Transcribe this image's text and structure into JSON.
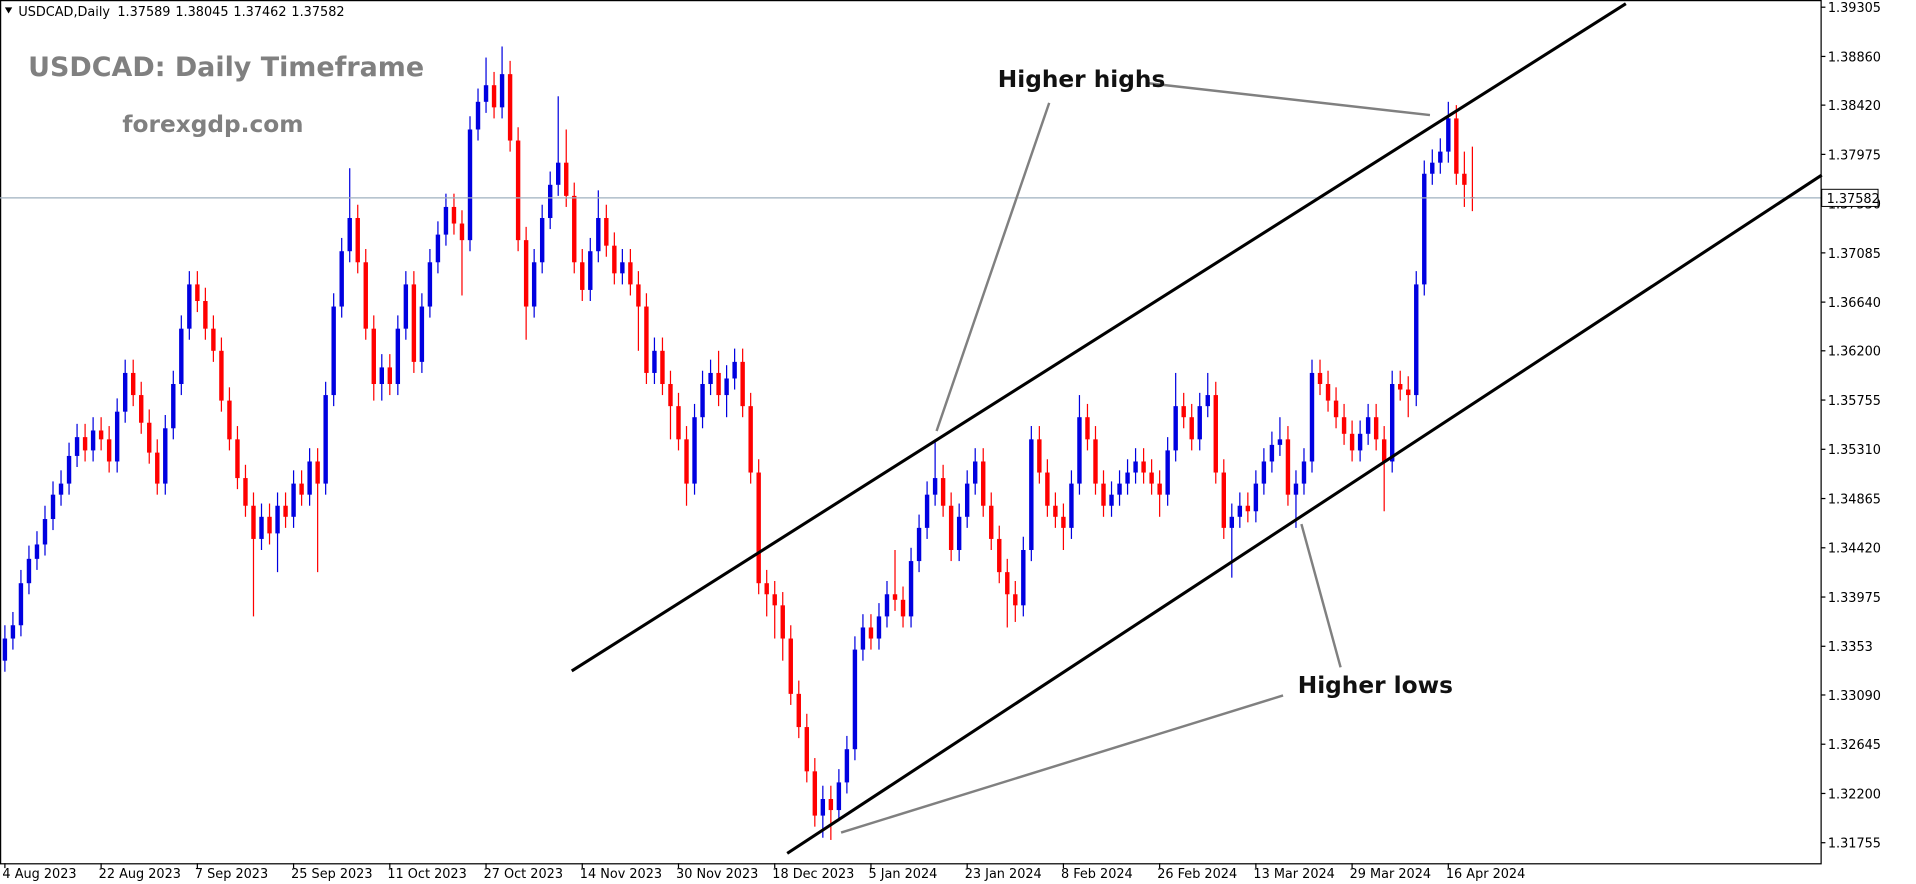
{
  "chart_data": {
    "type": "candlestick",
    "symbol": "USDCAD,Daily",
    "title": "USDCAD: Daily Timeframe",
    "subtitle": "forexgdp.com",
    "annotations": [
      "Higher highs",
      "Higher lows"
    ],
    "up_color": "#0000e0",
    "down_color": "#ff0000",
    "ylim": [
      1.3157,
      1.3937
    ],
    "yticks": [
      1.39305,
      {
        "value": 1.3886,
        "label": "1.38860"
      },
      {
        "value": 1.3842,
        "label": "1.38420"
      },
      1.37975,
      {
        "value": 1.3753,
        "label": "1.37530"
      },
      1.37085,
      {
        "value": 1.3664,
        "label": "1.36640"
      },
      {
        "value": 1.362,
        "label": "1.36200"
      },
      1.35755,
      {
        "value": 1.3531,
        "label": "1.35310"
      },
      1.34865,
      {
        "value": 1.3442,
        "label": "1.34420"
      },
      1.33975,
      1.3353,
      {
        "value": 1.3309,
        "label": "1.33090"
      },
      1.32645,
      {
        "value": 1.322,
        "label": "1.32200"
      },
      1.31755
    ],
    "categories": [
      "4 Aug 2023",
      null,
      null,
      null,
      null,
      null,
      null,
      null,
      null,
      null,
      null,
      null,
      "22 Aug 2023",
      null,
      null,
      null,
      null,
      null,
      null,
      null,
      null,
      null,
      null,
      null,
      "7 Sep 2023",
      null,
      null,
      null,
      null,
      null,
      null,
      null,
      null,
      null,
      null,
      null,
      "25 Sep 2023",
      null,
      null,
      null,
      null,
      null,
      null,
      null,
      null,
      null,
      null,
      null,
      "11 Oct 2023",
      null,
      null,
      null,
      null,
      null,
      null,
      null,
      null,
      null,
      null,
      null,
      "27 Oct 2023",
      null,
      null,
      null,
      null,
      null,
      null,
      null,
      null,
      null,
      null,
      null,
      "14 Nov 2023",
      null,
      null,
      null,
      null,
      null,
      null,
      null,
      null,
      null,
      null,
      null,
      "30 Nov 2023",
      null,
      null,
      null,
      null,
      null,
      null,
      null,
      null,
      null,
      null,
      null,
      "18 Dec 2023",
      null,
      null,
      null,
      null,
      null,
      null,
      null,
      null,
      null,
      null,
      null,
      "5 Jan 2024",
      null,
      null,
      null,
      null,
      null,
      null,
      null,
      null,
      null,
      null,
      null,
      "23 Jan 2024",
      null,
      null,
      null,
      null,
      null,
      null,
      null,
      null,
      null,
      null,
      null,
      "8 Feb 2024",
      null,
      null,
      null,
      null,
      null,
      null,
      null,
      null,
      null,
      null,
      null,
      "26 Feb 2024",
      null,
      null,
      null,
      null,
      null,
      null,
      null,
      null,
      null,
      null,
      null,
      "13 Mar 2024",
      null,
      null,
      null,
      null,
      null,
      null,
      null,
      null,
      null,
      null,
      null,
      "29 Mar 2024",
      null,
      null,
      null,
      null,
      null,
      null,
      null,
      null,
      null,
      null,
      null,
      "16 Apr 2024",
      null,
      null,
      null
    ],
    "ohlc": [
      [
        1.334,
        1.3372,
        1.333,
        1.336
      ],
      [
        1.336,
        1.3384,
        1.335,
        1.3372
      ],
      [
        1.3372,
        1.3422,
        1.3362,
        1.341
      ],
      [
        1.341,
        1.3444,
        1.34,
        1.3432
      ],
      [
        1.3432,
        1.3457,
        1.3422,
        1.3445
      ],
      [
        1.3445,
        1.348,
        1.3435,
        1.3468
      ],
      [
        1.3468,
        1.3502,
        1.3458,
        1.349
      ],
      [
        1.349,
        1.3512,
        1.348,
        1.35
      ],
      [
        1.35,
        1.3537,
        1.349,
        1.3525
      ],
      [
        1.3525,
        1.3554,
        1.3515,
        1.3542
      ],
      [
        1.3542,
        1.3554,
        1.352,
        1.353
      ],
      [
        1.353,
        1.356,
        1.352,
        1.3548
      ],
      [
        1.3548,
        1.356,
        1.353,
        1.354
      ],
      [
        1.354,
        1.3552,
        1.351,
        1.352
      ],
      [
        1.352,
        1.3577,
        1.351,
        1.3565
      ],
      [
        1.3565,
        1.3612,
        1.3555,
        1.36
      ],
      [
        1.36,
        1.3612,
        1.357,
        1.358
      ],
      [
        1.358,
        1.3592,
        1.3545,
        1.3555
      ],
      [
        1.3555,
        1.3567,
        1.3518,
        1.3528
      ],
      [
        1.3528,
        1.354,
        1.349,
        1.35
      ],
      [
        1.35,
        1.3562,
        1.349,
        1.355
      ],
      [
        1.355,
        1.3602,
        1.354,
        1.359
      ],
      [
        1.359,
        1.3652,
        1.358,
        1.364
      ],
      [
        1.364,
        1.3692,
        1.363,
        1.368
      ],
      [
        1.368,
        1.3692,
        1.3655,
        1.3665
      ],
      [
        1.3665,
        1.3677,
        1.363,
        1.364
      ],
      [
        1.364,
        1.3652,
        1.361,
        1.362
      ],
      [
        1.362,
        1.3632,
        1.3565,
        1.3575
      ],
      [
        1.3575,
        1.3587,
        1.353,
        1.354
      ],
      [
        1.354,
        1.3552,
        1.3495,
        1.3505
      ],
      [
        1.3505,
        1.3517,
        1.347,
        1.348
      ],
      [
        1.348,
        1.3492,
        1.338,
        1.345
      ],
      [
        1.345,
        1.3482,
        1.344,
        1.347
      ],
      [
        1.347,
        1.3482,
        1.3445,
        1.3455
      ],
      [
        1.3455,
        1.3492,
        1.342,
        1.348
      ],
      [
        1.348,
        1.3492,
        1.346,
        1.347
      ],
      [
        1.347,
        1.3512,
        1.346,
        1.35
      ],
      [
        1.35,
        1.3512,
        1.348,
        1.349
      ],
      [
        1.349,
        1.3532,
        1.348,
        1.352
      ],
      [
        1.352,
        1.3532,
        1.342,
        1.35
      ],
      [
        1.35,
        1.3592,
        1.349,
        1.358
      ],
      [
        1.358,
        1.3672,
        1.357,
        1.366
      ],
      [
        1.366,
        1.3722,
        1.365,
        1.371
      ],
      [
        1.371,
        1.3785,
        1.37,
        1.374
      ],
      [
        1.374,
        1.3752,
        1.369,
        1.37
      ],
      [
        1.37,
        1.3712,
        1.363,
        1.364
      ],
      [
        1.364,
        1.3652,
        1.3575,
        1.359
      ],
      [
        1.359,
        1.3617,
        1.3575,
        1.3605
      ],
      [
        1.3605,
        1.3617,
        1.358,
        1.359
      ],
      [
        1.359,
        1.3652,
        1.358,
        1.364
      ],
      [
        1.364,
        1.3692,
        1.363,
        1.368
      ],
      [
        1.368,
        1.3692,
        1.36,
        1.361
      ],
      [
        1.361,
        1.3672,
        1.36,
        1.366
      ],
      [
        1.366,
        1.3712,
        1.365,
        1.37
      ],
      [
        1.37,
        1.3737,
        1.369,
        1.3725
      ],
      [
        1.3725,
        1.3762,
        1.3715,
        1.375
      ],
      [
        1.375,
        1.3762,
        1.3725,
        1.3735
      ],
      [
        1.3735,
        1.3747,
        1.367,
        1.372
      ],
      [
        1.372,
        1.3832,
        1.371,
        1.382
      ],
      [
        1.382,
        1.3857,
        1.381,
        1.3845
      ],
      [
        1.3845,
        1.3885,
        1.3835,
        1.386
      ],
      [
        1.386,
        1.3872,
        1.383,
        1.384
      ],
      [
        1.384,
        1.3895,
        1.383,
        1.387
      ],
      [
        1.387,
        1.3882,
        1.38,
        1.381
      ],
      [
        1.381,
        1.3822,
        1.371,
        1.372
      ],
      [
        1.372,
        1.3732,
        1.363,
        1.366
      ],
      [
        1.366,
        1.3712,
        1.365,
        1.37
      ],
      [
        1.37,
        1.3752,
        1.369,
        1.374
      ],
      [
        1.374,
        1.3782,
        1.373,
        1.377
      ],
      [
        1.377,
        1.385,
        1.376,
        1.379
      ],
      [
        1.379,
        1.382,
        1.375,
        1.376
      ],
      [
        1.376,
        1.3772,
        1.369,
        1.37
      ],
      [
        1.37,
        1.3712,
        1.3665,
        1.3675
      ],
      [
        1.3675,
        1.3722,
        1.3665,
        1.371
      ],
      [
        1.371,
        1.3765,
        1.37,
        1.374
      ],
      [
        1.374,
        1.3752,
        1.3705,
        1.3715
      ],
      [
        1.3715,
        1.3727,
        1.368,
        1.369
      ],
      [
        1.369,
        1.3712,
        1.368,
        1.37
      ],
      [
        1.37,
        1.3712,
        1.367,
        1.368
      ],
      [
        1.368,
        1.3692,
        1.362,
        1.366
      ],
      [
        1.366,
        1.3672,
        1.359,
        1.36
      ],
      [
        1.36,
        1.3632,
        1.359,
        1.362
      ],
      [
        1.362,
        1.3632,
        1.358,
        1.359
      ],
      [
        1.359,
        1.3602,
        1.354,
        1.357
      ],
      [
        1.357,
        1.3582,
        1.353,
        1.354
      ],
      [
        1.354,
        1.3552,
        1.348,
        1.35
      ],
      [
        1.35,
        1.3572,
        1.349,
        1.356
      ],
      [
        1.356,
        1.3602,
        1.355,
        1.359
      ],
      [
        1.359,
        1.3612,
        1.358,
        1.36
      ],
      [
        1.36,
        1.362,
        1.357,
        1.358
      ],
      [
        1.358,
        1.3607,
        1.356,
        1.3595
      ],
      [
        1.3595,
        1.3622,
        1.3585,
        1.361
      ],
      [
        1.361,
        1.3622,
        1.356,
        1.357
      ],
      [
        1.357,
        1.3582,
        1.35,
        1.351
      ],
      [
        1.351,
        1.3522,
        1.34,
        1.341
      ],
      [
        1.341,
        1.3422,
        1.338,
        1.34
      ],
      [
        1.34,
        1.3412,
        1.336,
        1.339
      ],
      [
        1.339,
        1.3402,
        1.334,
        1.336
      ],
      [
        1.336,
        1.3372,
        1.33,
        1.331
      ],
      [
        1.331,
        1.3322,
        1.327,
        1.328
      ],
      [
        1.328,
        1.3292,
        1.323,
        1.324
      ],
      [
        1.324,
        1.3252,
        1.319,
        1.32
      ],
      [
        1.32,
        1.3227,
        1.318,
        1.3215
      ],
      [
        1.3215,
        1.3227,
        1.3178,
        1.3205
      ],
      [
        1.3205,
        1.3242,
        1.3195,
        1.323
      ],
      [
        1.323,
        1.3272,
        1.322,
        1.326
      ],
      [
        1.326,
        1.3362,
        1.325,
        1.335
      ],
      [
        1.335,
        1.3382,
        1.334,
        1.337
      ],
      [
        1.337,
        1.3382,
        1.335,
        1.336
      ],
      [
        1.336,
        1.3392,
        1.335,
        1.338
      ],
      [
        1.338,
        1.3412,
        1.337,
        1.34
      ],
      [
        1.34,
        1.344,
        1.3385,
        1.3395
      ],
      [
        1.3395,
        1.3407,
        1.337,
        1.338
      ],
      [
        1.338,
        1.3442,
        1.337,
        1.343
      ],
      [
        1.343,
        1.3472,
        1.342,
        1.346
      ],
      [
        1.346,
        1.3502,
        1.345,
        1.349
      ],
      [
        1.349,
        1.354,
        1.348,
        1.3505
      ],
      [
        1.3505,
        1.3517,
        1.347,
        1.348
      ],
      [
        1.348,
        1.3492,
        1.343,
        1.344
      ],
      [
        1.344,
        1.3482,
        1.343,
        1.347
      ],
      [
        1.347,
        1.3512,
        1.346,
        1.35
      ],
      [
        1.35,
        1.3532,
        1.349,
        1.352
      ],
      [
        1.352,
        1.3532,
        1.347,
        1.348
      ],
      [
        1.348,
        1.3492,
        1.344,
        1.345
      ],
      [
        1.345,
        1.3462,
        1.341,
        1.342
      ],
      [
        1.342,
        1.3432,
        1.337,
        1.34
      ],
      [
        1.34,
        1.3412,
        1.3375,
        1.339
      ],
      [
        1.339,
        1.3452,
        1.338,
        1.344
      ],
      [
        1.344,
        1.3552,
        1.343,
        1.354
      ],
      [
        1.354,
        1.3552,
        1.35,
        1.351
      ],
      [
        1.351,
        1.3522,
        1.347,
        1.348
      ],
      [
        1.348,
        1.3492,
        1.346,
        1.347
      ],
      [
        1.347,
        1.3482,
        1.344,
        1.346
      ],
      [
        1.346,
        1.3512,
        1.345,
        1.35
      ],
      [
        1.35,
        1.358,
        1.349,
        1.356
      ],
      [
        1.356,
        1.3572,
        1.353,
        1.354
      ],
      [
        1.354,
        1.3552,
        1.349,
        1.35
      ],
      [
        1.35,
        1.3512,
        1.347,
        1.348
      ],
      [
        1.348,
        1.3502,
        1.347,
        1.349
      ],
      [
        1.349,
        1.3512,
        1.348,
        1.35
      ],
      [
        1.35,
        1.3522,
        1.349,
        1.351
      ],
      [
        1.351,
        1.3532,
        1.35,
        1.352
      ],
      [
        1.352,
        1.3532,
        1.35,
        1.351
      ],
      [
        1.351,
        1.3522,
        1.349,
        1.35
      ],
      [
        1.35,
        1.3512,
        1.347,
        1.349
      ],
      [
        1.349,
        1.3542,
        1.348,
        1.353
      ],
      [
        1.353,
        1.36,
        1.352,
        1.357
      ],
      [
        1.357,
        1.3582,
        1.355,
        1.356
      ],
      [
        1.356,
        1.3572,
        1.353,
        1.354
      ],
      [
        1.354,
        1.3582,
        1.353,
        1.357
      ],
      [
        1.357,
        1.36,
        1.356,
        1.358
      ],
      [
        1.358,
        1.3592,
        1.35,
        1.351
      ],
      [
        1.351,
        1.3522,
        1.345,
        1.346
      ],
      [
        1.346,
        1.3482,
        1.3415,
        1.347
      ],
      [
        1.347,
        1.3492,
        1.346,
        1.348
      ],
      [
        1.348,
        1.3492,
        1.3465,
        1.3475
      ],
      [
        1.3475,
        1.3512,
        1.3465,
        1.35
      ],
      [
        1.35,
        1.3532,
        1.349,
        1.352
      ],
      [
        1.352,
        1.3547,
        1.351,
        1.3535
      ],
      [
        1.3535,
        1.356,
        1.3525,
        1.354
      ],
      [
        1.354,
        1.3552,
        1.348,
        1.349
      ],
      [
        1.349,
        1.3512,
        1.346,
        1.35
      ],
      [
        1.35,
        1.3532,
        1.349,
        1.352
      ],
      [
        1.352,
        1.3612,
        1.351,
        1.36
      ],
      [
        1.36,
        1.3612,
        1.358,
        1.359
      ],
      [
        1.359,
        1.3602,
        1.3565,
        1.3575
      ],
      [
        1.3575,
        1.3587,
        1.355,
        1.356
      ],
      [
        1.356,
        1.3572,
        1.3535,
        1.3545
      ],
      [
        1.3545,
        1.3557,
        1.352,
        1.353
      ],
      [
        1.353,
        1.3557,
        1.352,
        1.3545
      ],
      [
        1.3545,
        1.3572,
        1.3535,
        1.356
      ],
      [
        1.356,
        1.3572,
        1.353,
        1.354
      ],
      [
        1.354,
        1.3552,
        1.3475,
        1.352
      ],
      [
        1.352,
        1.3602,
        1.351,
        1.359
      ],
      [
        1.359,
        1.3602,
        1.3575,
        1.3585
      ],
      [
        1.3585,
        1.3597,
        1.356,
        1.358
      ],
      [
        1.358,
        1.3692,
        1.357,
        1.368
      ],
      [
        1.368,
        1.3792,
        1.367,
        1.378
      ],
      [
        1.378,
        1.3802,
        1.377,
        1.379
      ],
      [
        1.379,
        1.3812,
        1.378,
        1.38
      ],
      [
        1.38,
        1.3845,
        1.379,
        1.383
      ],
      [
        1.383,
        1.3842,
        1.377,
        1.378
      ],
      [
        1.378,
        1.38,
        1.375,
        1.377
      ],
      [
        1.37589,
        1.38045,
        1.37462,
        1.37582
      ]
    ]
  }
}
